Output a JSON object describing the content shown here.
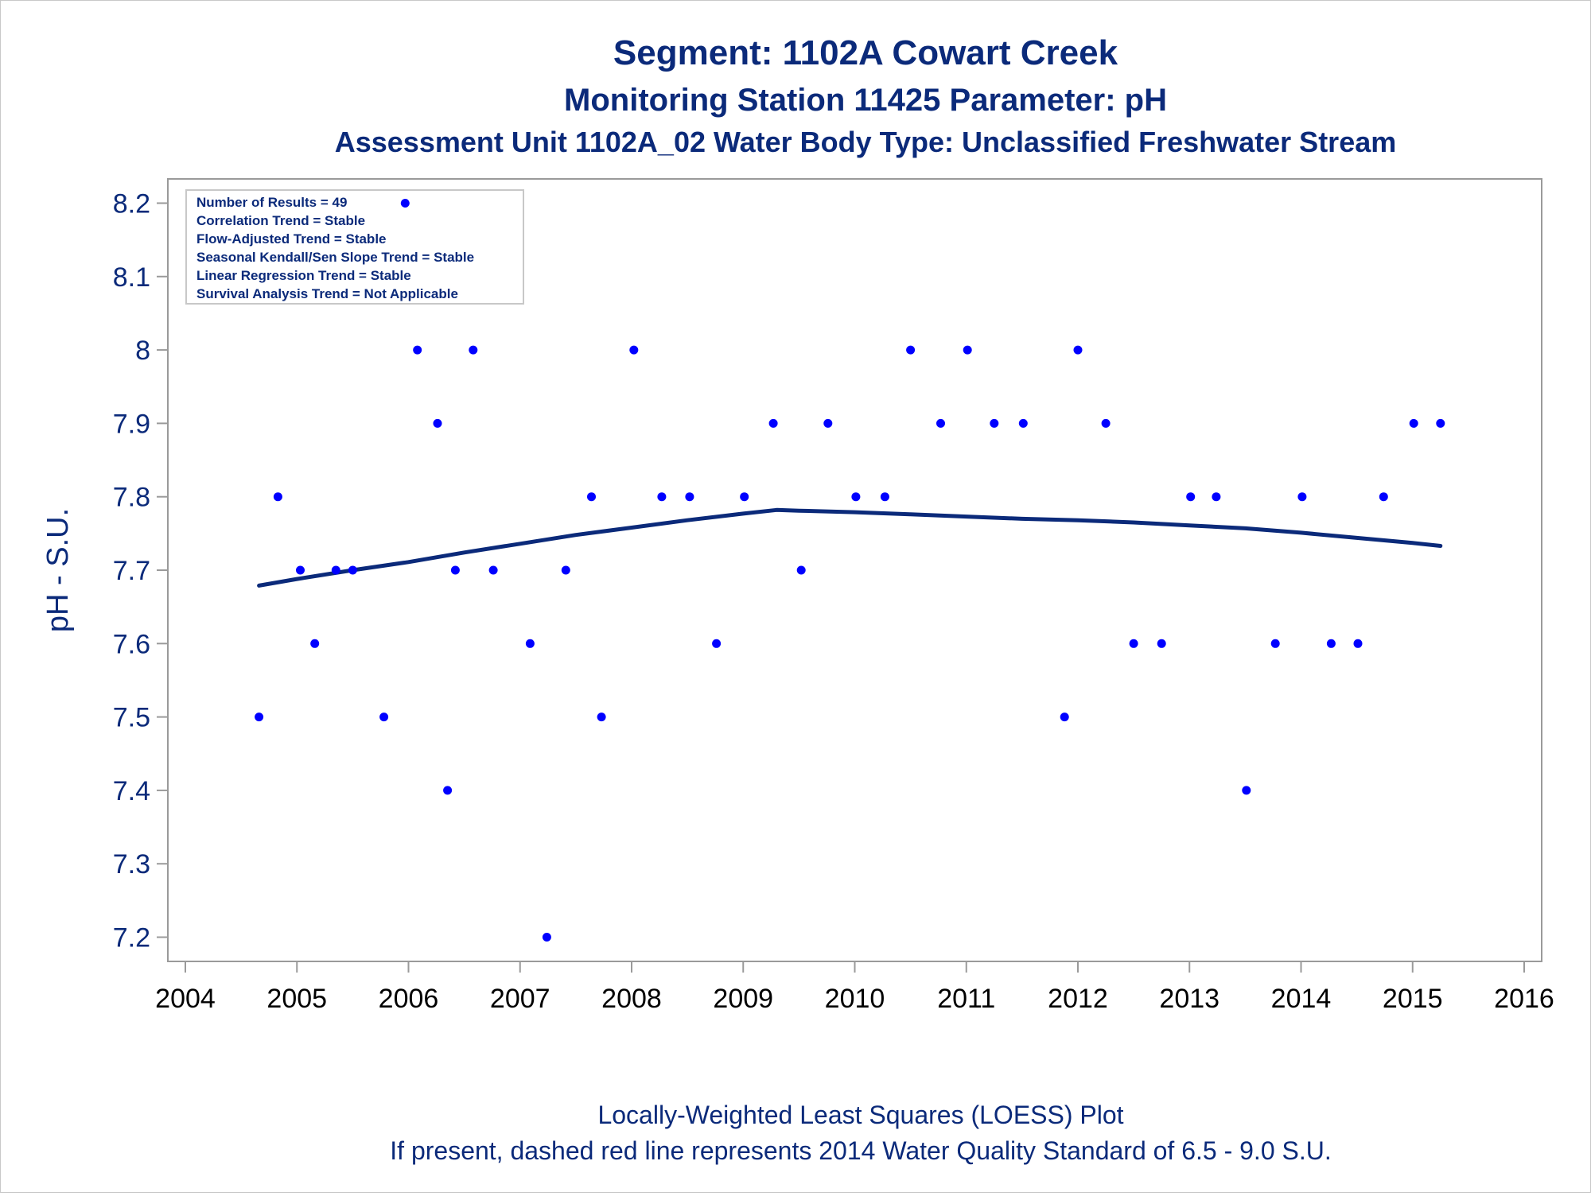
{
  "titles": {
    "line1": "Segment: 1102A  Cowart Creek",
    "line2": "Monitoring Station 11425 Parameter: pH",
    "line3": "Assessment Unit 1102A_02   Water Body Type: Unclassified Freshwater Stream"
  },
  "footnotes": {
    "line1": "Locally-Weighted Least Squares (LOESS) Plot",
    "line2": "If present, dashed red line represents 2014 Water Quality Standard of 6.5 - 9.0 S.U."
  },
  "inset_box": {
    "lines": [
      "Number of Results = 49",
      "Correlation Trend = Stable",
      "Flow-Adjusted Trend = Stable",
      "Seasonal Kendall/Sen Slope Trend = Stable",
      "Linear Regression Trend = Stable",
      "Survival Analysis Trend = Not Applicable"
    ]
  },
  "colors": {
    "text": "#0b2a7a",
    "points": "#0000ff",
    "loess_line": "#0b2a7a",
    "axis": "#9a9a9a"
  },
  "chart_data": {
    "type": "scatter",
    "title": "Segment: 1102A  Cowart Creek",
    "xlabel": "",
    "ylabel": "pH - S.U.",
    "xlim": [
      2004,
      2016
    ],
    "ylim": [
      7.18,
      8.22
    ],
    "x_ticks": [
      "2004",
      "2005",
      "2006",
      "2007",
      "2008",
      "2009",
      "2010",
      "2011",
      "2012",
      "2013",
      "2014",
      "2015",
      "2016"
    ],
    "y_ticks": [
      "7.2",
      "7.3",
      "7.4",
      "7.5",
      "7.6",
      "7.7",
      "7.8",
      "7.9",
      "8",
      "8.1",
      "8.2"
    ],
    "grid": false,
    "series": [
      {
        "kind": "points",
        "x": [
          2004.66,
          2004.83,
          2005.03,
          2005.16,
          2005.35,
          2005.5,
          2005.78,
          2005.97,
          2006.08,
          2006.26,
          2006.35,
          2006.42,
          2006.58,
          2006.76,
          2007.09,
          2007.24,
          2007.41,
          2007.64,
          2007.73,
          2008.02,
          2008.27,
          2008.52,
          2008.76,
          2009.01,
          2009.27,
          2009.52,
          2009.76,
          2010.01,
          2010.27,
          2010.5,
          2010.77,
          2011.01,
          2011.25,
          2011.51,
          2011.88,
          2012.0,
          2012.25,
          2012.5,
          2012.75,
          2013.01,
          2013.24,
          2013.51,
          2013.77,
          2014.01,
          2014.27,
          2014.51,
          2014.74,
          2015.01,
          2015.25
        ],
        "y": [
          7.5,
          7.8,
          7.7,
          7.6,
          7.7,
          7.7,
          7.5,
          8.2,
          8.0,
          7.9,
          7.4,
          7.7,
          8.0,
          7.7,
          7.6,
          7.2,
          7.7,
          7.8,
          7.5,
          8.0,
          7.8,
          7.8,
          7.6,
          7.8,
          7.9,
          7.7,
          7.9,
          7.8,
          7.8,
          8.0,
          7.9,
          8.0,
          7.9,
          7.9,
          7.5,
          8.0,
          7.9,
          7.6,
          7.6,
          7.8,
          7.8,
          7.4,
          7.6,
          7.8,
          7.6,
          7.6,
          7.8,
          7.9,
          7.9
        ]
      },
      {
        "kind": "loess",
        "x": [
          2004.66,
          2005.0,
          2005.5,
          2006.0,
          2006.5,
          2007.0,
          2007.5,
          2008.0,
          2008.5,
          2009.0,
          2009.3,
          2009.5,
          2010.0,
          2010.5,
          2011.0,
          2011.5,
          2012.0,
          2012.5,
          2013.0,
          2013.5,
          2014.0,
          2014.5,
          2015.0,
          2015.25
        ],
        "y": [
          7.679,
          7.688,
          7.7,
          7.711,
          7.724,
          7.736,
          7.748,
          7.758,
          7.768,
          7.777,
          7.782,
          7.781,
          7.779,
          7.776,
          7.773,
          7.77,
          7.768,
          7.765,
          7.761,
          7.757,
          7.751,
          7.744,
          7.737,
          7.733
        ]
      }
    ]
  }
}
